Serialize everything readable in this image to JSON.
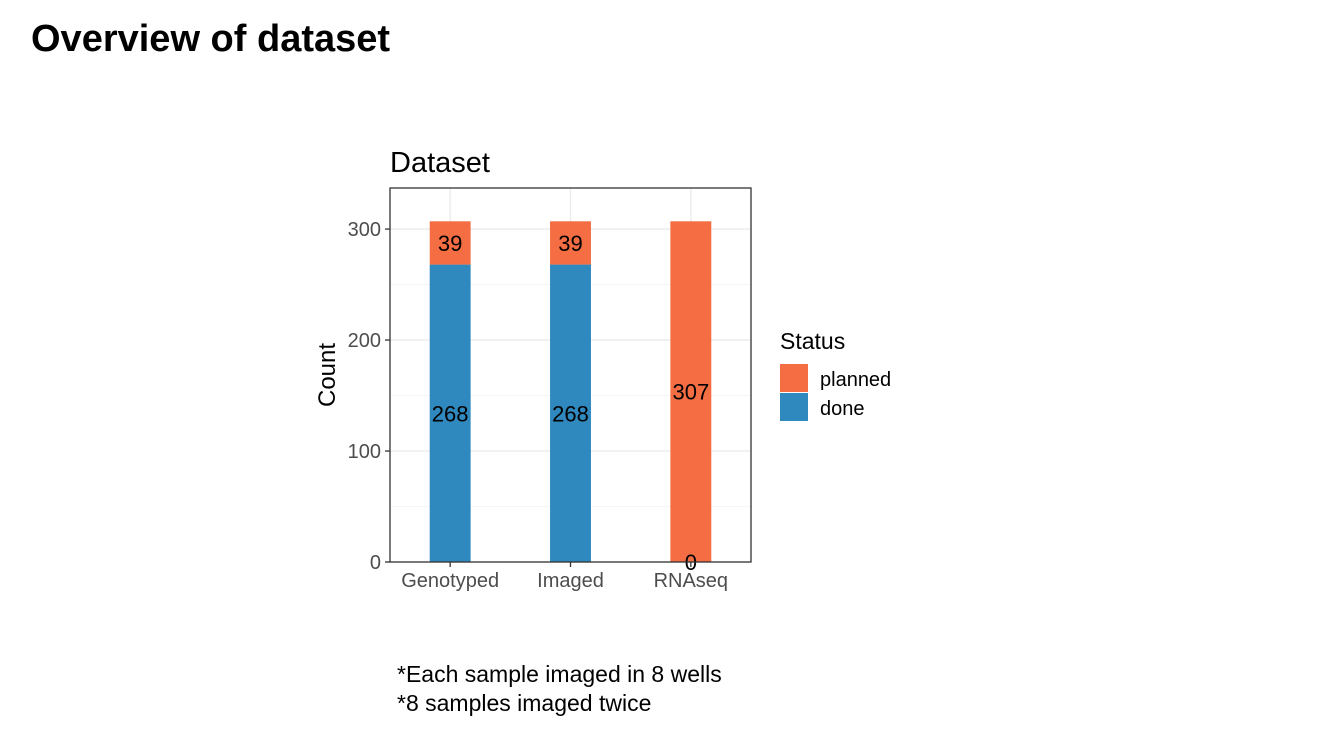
{
  "page": {
    "title": "Overview of dataset",
    "notes": [
      "*Each sample imaged in 8 wells",
      "*8 samples imaged twice"
    ]
  },
  "chart_data": {
    "type": "bar",
    "stacked": true,
    "title": "Dataset",
    "xlabel": "",
    "ylabel": "Count",
    "categories": [
      "Genotyped",
      "Imaged",
      "RNAseq"
    ],
    "series": [
      {
        "name": "done",
        "values": [
          268,
          268,
          0
        ],
        "color": "#2F88BE"
      },
      {
        "name": "planned",
        "values": [
          39,
          39,
          307
        ],
        "color": "#F46D43"
      }
    ],
    "ylim": [
      0,
      337
    ],
    "yticks": [
      0,
      100,
      200,
      300
    ],
    "grid": true,
    "legend": {
      "title": "Status",
      "position": "right",
      "order": [
        "planned",
        "done"
      ]
    }
  }
}
